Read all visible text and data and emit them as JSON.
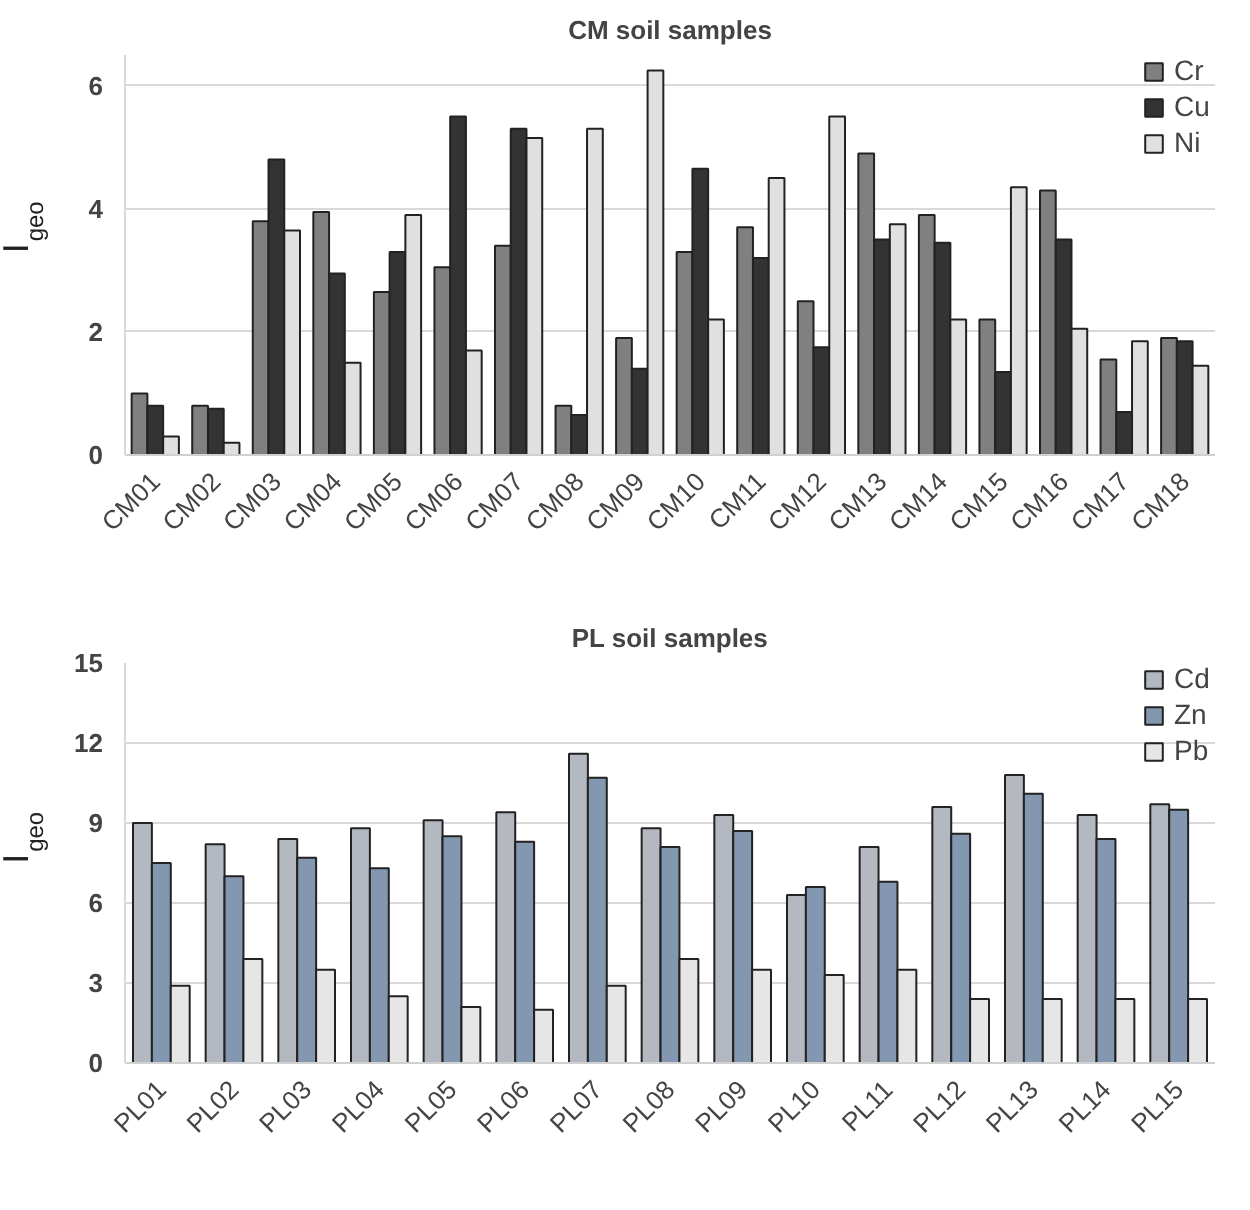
{
  "chart_data": [
    {
      "type": "bar",
      "title": "CM soil samples",
      "ylabel": "I$_{geo}$",
      "categories": [
        "CM01",
        "CM02",
        "CM03",
        "CM04",
        "CM05",
        "CM06",
        "CM07",
        "CM08",
        "CM09",
        "CM10",
        "CM11",
        "CM12",
        "CM13",
        "CM14",
        "CM15",
        "CM16",
        "CM17",
        "CM18"
      ],
      "series": [
        {
          "name": "Cr",
          "color": "#808080",
          "values": [
            1.0,
            0.8,
            3.8,
            3.95,
            2.65,
            3.05,
            3.4,
            0.8,
            1.9,
            3.3,
            3.7,
            2.5,
            4.9,
            3.9,
            2.2,
            4.3,
            1.55,
            1.9
          ]
        },
        {
          "name": "Cu",
          "color": "#333333",
          "values": [
            0.8,
            0.75,
            4.8,
            2.95,
            3.3,
            5.5,
            5.3,
            0.65,
            1.4,
            4.65,
            3.2,
            1.75,
            3.5,
            3.45,
            1.35,
            3.5,
            0.7,
            1.85
          ]
        },
        {
          "name": "Ni",
          "color": "#e0e0e0",
          "values": [
            0.3,
            0.2,
            3.65,
            1.5,
            3.9,
            1.7,
            5.15,
            5.3,
            6.25,
            2.2,
            4.5,
            5.5,
            3.75,
            2.2,
            4.35,
            2.05,
            1.85,
            1.45
          ]
        }
      ],
      "ylim": [
        0,
        6.5
      ],
      "yticks": [
        0,
        2,
        4,
        6
      ],
      "grid": "y",
      "legend": "top right"
    },
    {
      "type": "bar",
      "title": "PL soil samples",
      "ylabel": "I$_{geo}$",
      "categories": [
        "PL01",
        "PL02",
        "PL03",
        "PL04",
        "PL05",
        "PL06",
        "PL07",
        "PL08",
        "PL09",
        "PL10",
        "PL11",
        "PL12",
        "PL13",
        "PL14",
        "PL15"
      ],
      "series": [
        {
          "name": "Cd",
          "color": "#b4b8c0",
          "values": [
            9.0,
            8.2,
            8.4,
            8.8,
            9.1,
            9.4,
            11.6,
            8.8,
            9.3,
            6.3,
            8.1,
            9.6,
            10.8,
            9.3,
            9.7
          ]
        },
        {
          "name": "Zn",
          "color": "#8497b0",
          "values": [
            7.5,
            7.0,
            7.7,
            7.3,
            8.5,
            8.3,
            10.7,
            8.1,
            8.7,
            6.6,
            6.8,
            8.6,
            10.1,
            8.4,
            9.5
          ]
        },
        {
          "name": "Pb",
          "color": "#e6e6e6",
          "values": [
            2.9,
            3.9,
            3.5,
            2.5,
            2.1,
            2.0,
            2.9,
            3.9,
            3.5,
            3.3,
            3.5,
            2.4,
            2.4,
            2.4,
            2.4
          ]
        }
      ],
      "ylim": [
        0,
        15
      ],
      "yticks": [
        0,
        3,
        6,
        9,
        12,
        15
      ],
      "grid": "y",
      "legend": "top right"
    }
  ]
}
